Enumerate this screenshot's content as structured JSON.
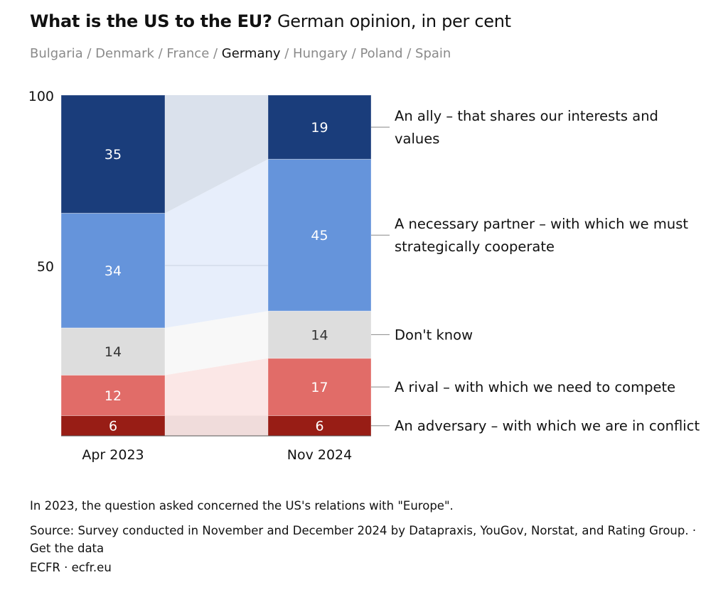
{
  "title": {
    "bold": "What is the US to the EU?",
    "rest": "German opinion, in per cent"
  },
  "countries": [
    {
      "label": "Bulgaria",
      "selected": false
    },
    {
      "label": "Denmark",
      "selected": false
    },
    {
      "label": "France",
      "selected": false
    },
    {
      "label": "Germany",
      "selected": true
    },
    {
      "label": "Hungary",
      "selected": false
    },
    {
      "label": "Poland",
      "selected": false
    },
    {
      "label": "Spain",
      "selected": false
    }
  ],
  "separator": " / ",
  "chart_data": {
    "type": "bar",
    "stacked": true,
    "categories": [
      "Apr 2023",
      "Nov 2024"
    ],
    "ylim": [
      0,
      100
    ],
    "yticks": [
      "100",
      "50"
    ],
    "series": [
      {
        "name": "An adversary – with which we are in conflict",
        "values": [
          6,
          6
        ],
        "color": "#981d15",
        "flow": "#f0dcdb",
        "text": "#ffffff"
      },
      {
        "name": "A rival – with which we need to compete",
        "values": [
          12,
          17
        ],
        "color": "#e16c68",
        "flow": "#fbe7e6",
        "text": "#ffffff"
      },
      {
        "name": "Don't know",
        "values": [
          14,
          14
        ],
        "color": "#dddddd",
        "flow": "#f8f8f8",
        "text": "#333333"
      },
      {
        "name": "A necessary partner – with which we must strategically cooperate",
        "values": [
          34,
          45
        ],
        "color": "#6594db",
        "flow": "#e7eefb",
        "text": "#ffffff"
      },
      {
        "name": "An ally – that shares our interests and values",
        "values": [
          35,
          19
        ],
        "color": "#1a3d7b",
        "flow": "#dae1ec",
        "text": "#ffffff"
      }
    ]
  },
  "legend_lines": [
    [
      "An adversary – with which we are in conflict"
    ],
    [
      "A rival – with which we need to compete"
    ],
    [
      "Don't know"
    ],
    [
      "A necessary partner – with which we must",
      "strategically cooperate"
    ],
    [
      "An ally – that shares our interests and",
      "values"
    ]
  ],
  "footer": {
    "note": "In 2023, the question asked concerned the US's relations with \"Europe\".",
    "source": "Source: Survey conducted in November and December 2024 by Datapraxis, YouGov, Norstat, and Rating Group.",
    "get_data": "Get the data",
    "credit": "ECFR · ecfr.eu"
  }
}
